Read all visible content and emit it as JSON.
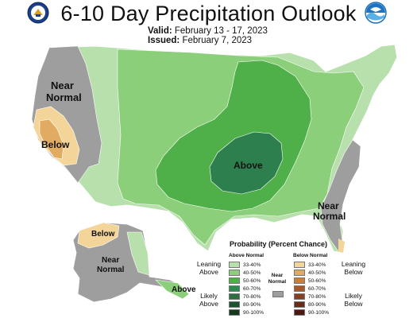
{
  "header": {
    "title": "6-10 Day Precipitation Outlook",
    "valid_label": "Valid:",
    "valid_value": "February 13 - 17, 2023",
    "issued_label": "Issued:",
    "issued_value": "February 7, 2023"
  },
  "logos": {
    "left": "commerce-seal-icon",
    "right": "noaa-logo-icon"
  },
  "map": {
    "regions": {
      "near_normal_west": "Near\nNormal",
      "below_ca": "Below",
      "above_central": "Above",
      "near_normal_se": "Near\nNormal",
      "below_ak": "Below",
      "near_normal_ak": "Near\nNormal",
      "above_ak": "Above"
    }
  },
  "legend": {
    "title": "Probability (Percent Chance)",
    "above_header": "Above Normal",
    "below_header": "Below Normal",
    "near_header": "Near\nNormal",
    "above": [
      {
        "label": "33-40%",
        "color": "#b8e0ac"
      },
      {
        "label": "40-50%",
        "color": "#8ccf7a"
      },
      {
        "label": "50-60%",
        "color": "#4fb04a"
      },
      {
        "label": "60-70%",
        "color": "#2e8a4e"
      },
      {
        "label": "70-80%",
        "color": "#2d6e40"
      },
      {
        "label": "80-90%",
        "color": "#1e5230"
      },
      {
        "label": "90-100%",
        "color": "#133a1e"
      }
    ],
    "below": [
      {
        "label": "33-40%",
        "color": "#f3d59a"
      },
      {
        "label": "40-50%",
        "color": "#e1ac62"
      },
      {
        "label": "50-60%",
        "color": "#c7803b"
      },
      {
        "label": "60-70%",
        "color": "#a4592b"
      },
      {
        "label": "70-80%",
        "color": "#873f22"
      },
      {
        "label": "80-90%",
        "color": "#6a2a1a"
      },
      {
        "label": "90-100%",
        "color": "#4a1a10"
      }
    ],
    "near_color": "#9e9e9e",
    "leaning_above": "Leaning\nAbove",
    "likely_above": "Likely\nAbove",
    "leaning_below": "Leaning\nBelow",
    "likely_below": "Likely\nBelow"
  }
}
